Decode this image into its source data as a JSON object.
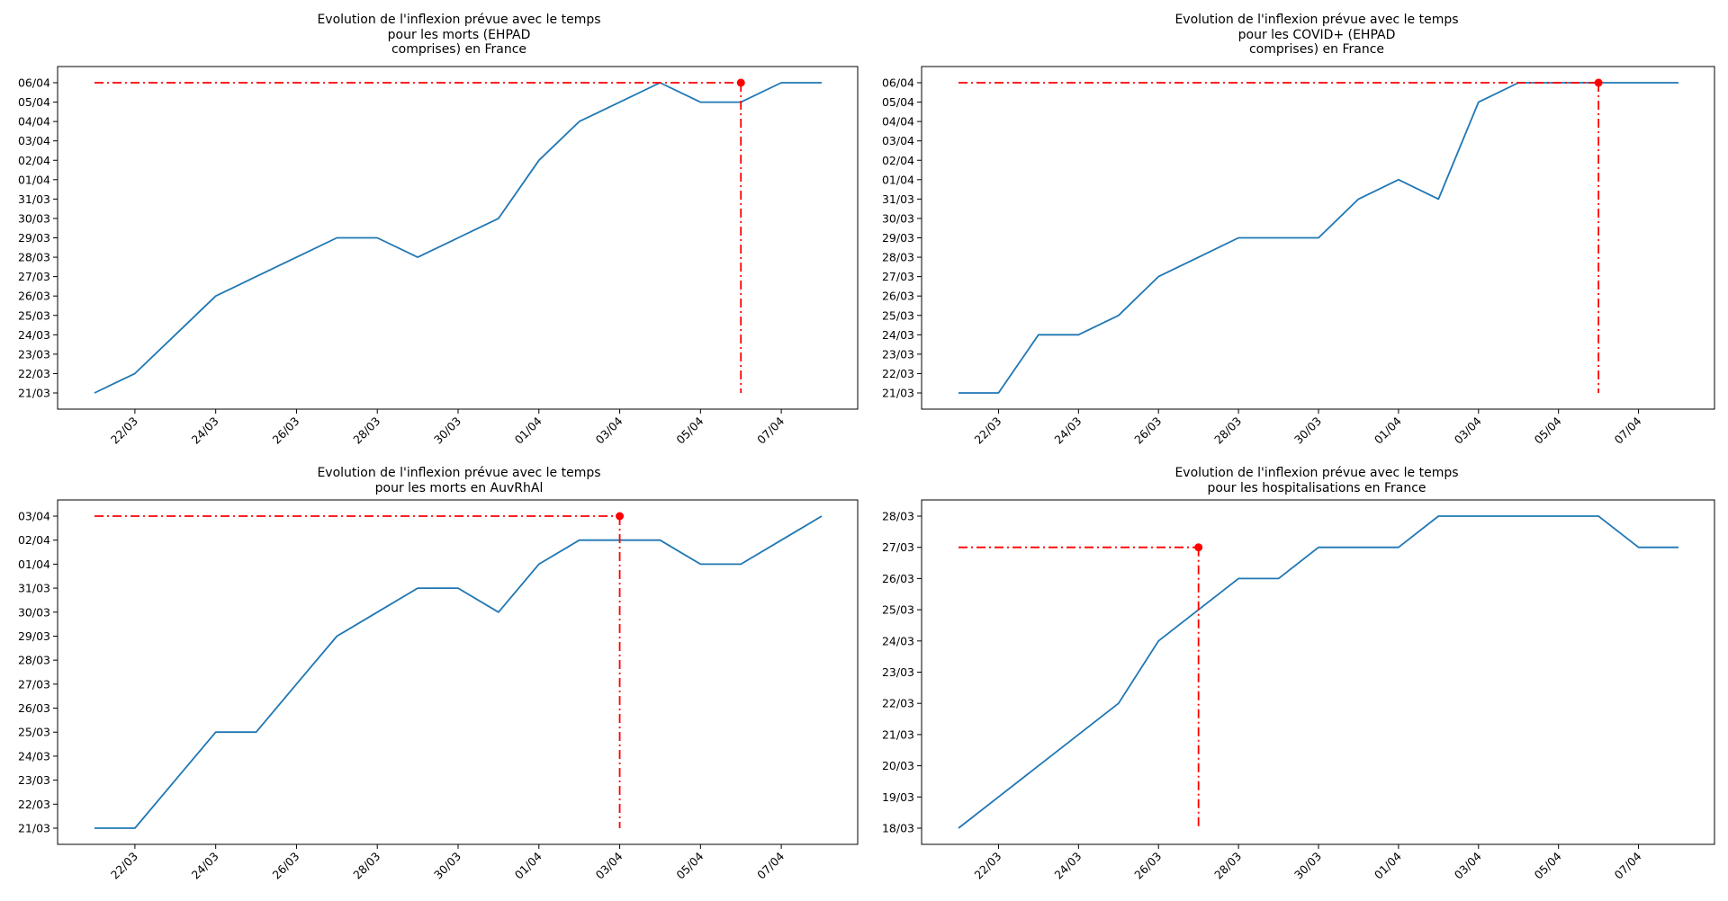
{
  "chart_data": [
    {
      "type": "line",
      "title": "Evolution de l'inflexion prévue avec le temps\npour les morts (EHPAD\ncomprises) en France",
      "x": [
        "21/03",
        "22/03",
        "23/03",
        "24/03",
        "25/03",
        "26/03",
        "27/03",
        "28/03",
        "29/03",
        "30/03",
        "31/03",
        "01/04",
        "02/04",
        "03/04",
        "04/04",
        "05/04",
        "06/04",
        "07/04",
        "08/04"
      ],
      "x_tick_labels": [
        "22/03",
        "24/03",
        "26/03",
        "28/03",
        "30/03",
        "01/04",
        "03/04",
        "05/04",
        "07/04"
      ],
      "y_categories": [
        "21/03",
        "22/03",
        "23/03",
        "24/03",
        "25/03",
        "26/03",
        "27/03",
        "28/03",
        "29/03",
        "30/03",
        "31/03",
        "01/04",
        "02/04",
        "03/04",
        "04/04",
        "05/04",
        "06/04"
      ],
      "series": [
        {
          "values": [
            "21/03",
            "22/03",
            "24/03",
            "26/03",
            "27/03",
            "28/03",
            "29/03",
            "29/03",
            "28/03",
            "29/03",
            "30/03",
            "02/04",
            "04/04",
            "05/04",
            "06/04",
            "05/04",
            "05/04",
            "06/04",
            "06/04"
          ]
        }
      ],
      "marker": {
        "x": "06/04",
        "y": "06/04",
        "y_bottom": "21/03"
      },
      "grid": false
    },
    {
      "type": "line",
      "title": "Evolution de l'inflexion prévue avec le temps\npour les COVID+ (EHPAD\ncomprises) en France",
      "x": [
        "21/03",
        "22/03",
        "23/03",
        "24/03",
        "25/03",
        "26/03",
        "27/03",
        "28/03",
        "29/03",
        "30/03",
        "31/03",
        "01/04",
        "02/04",
        "03/04",
        "04/04",
        "05/04",
        "06/04",
        "07/04",
        "08/04"
      ],
      "x_tick_labels": [
        "22/03",
        "24/03",
        "26/03",
        "28/03",
        "30/03",
        "01/04",
        "03/04",
        "05/04",
        "07/04"
      ],
      "y_categories": [
        "21/03",
        "22/03",
        "23/03",
        "24/03",
        "25/03",
        "26/03",
        "27/03",
        "28/03",
        "29/03",
        "30/03",
        "31/03",
        "01/04",
        "02/04",
        "03/04",
        "04/04",
        "05/04",
        "06/04"
      ],
      "series": [
        {
          "values": [
            "21/03",
            "21/03",
            "24/03",
            "24/03",
            "25/03",
            "27/03",
            "28/03",
            "29/03",
            "29/03",
            "29/03",
            "31/03",
            "01/04",
            "31/03",
            "05/04",
            "06/04",
            "06/04",
            "06/04",
            "06/04",
            "06/04"
          ]
        }
      ],
      "marker": {
        "x": "06/04",
        "y": "06/04",
        "y_bottom": "21/03"
      },
      "grid": false
    },
    {
      "type": "line",
      "title": "Evolution de l'inflexion prévue avec le temps\npour les morts en AuvRhAl",
      "x": [
        "21/03",
        "22/03",
        "23/03",
        "24/03",
        "25/03",
        "26/03",
        "27/03",
        "28/03",
        "29/03",
        "30/03",
        "31/03",
        "01/04",
        "02/04",
        "03/04",
        "04/04",
        "05/04",
        "06/04",
        "07/04",
        "08/04"
      ],
      "x_tick_labels": [
        "22/03",
        "24/03",
        "26/03",
        "28/03",
        "30/03",
        "01/04",
        "03/04",
        "05/04",
        "07/04"
      ],
      "y_categories": [
        "21/03",
        "22/03",
        "23/03",
        "24/03",
        "25/03",
        "26/03",
        "27/03",
        "28/03",
        "29/03",
        "30/03",
        "31/03",
        "01/04",
        "02/04",
        "03/04"
      ],
      "y_tick_labels": [
        "21/03",
        "22/03",
        "23/03",
        "24/03",
        "25/03",
        "26/03",
        "27/03",
        "28/03",
        "29/03",
        "30/03",
        "31/03",
        "01/04",
        "02/04",
        "03/04"
      ],
      "series": [
        {
          "values": [
            "21/03",
            "21/03",
            "23/03",
            "25/03",
            "25/03",
            "27/03",
            "29/03",
            "30/03",
            "31/03",
            "31/03",
            "30/03",
            "01/04",
            "02/04",
            "02/04",
            "02/04",
            "01/04",
            "01/04",
            "02/04",
            "03/04"
          ]
        }
      ],
      "marker": {
        "x": "03/04",
        "y": "03/04",
        "y_bottom": "21/03"
      },
      "grid": false
    },
    {
      "type": "line",
      "title": "Evolution de l'inflexion prévue avec le temps\npour les hospitalisations en France",
      "x": [
        "21/03",
        "22/03",
        "23/03",
        "24/03",
        "25/03",
        "26/03",
        "27/03",
        "28/03",
        "29/03",
        "30/03",
        "31/03",
        "01/04",
        "02/04",
        "03/04",
        "04/04",
        "05/04",
        "06/04",
        "07/04",
        "08/04"
      ],
      "x_tick_labels": [
        "22/03",
        "24/03",
        "26/03",
        "28/03",
        "30/03",
        "01/04",
        "03/04",
        "05/04",
        "07/04"
      ],
      "y_categories": [
        "18/03",
        "19/03",
        "20/03",
        "21/03",
        "22/03",
        "23/03",
        "24/03",
        "25/03",
        "26/03",
        "27/03",
        "28/03"
      ],
      "series": [
        {
          "values": [
            "18/03",
            "19/03",
            "20/03",
            "21/03",
            "22/03",
            "24/03",
            "25/03",
            "26/03",
            "26/03",
            "27/03",
            "27/03",
            "27/03",
            "28/03",
            "28/03",
            "28/03",
            "28/03",
            "28/03",
            "27/03",
            "27/03"
          ]
        }
      ],
      "marker": {
        "x": "27/03",
        "y": "27/03",
        "y_bottom": "18/03"
      },
      "grid": false
    }
  ]
}
